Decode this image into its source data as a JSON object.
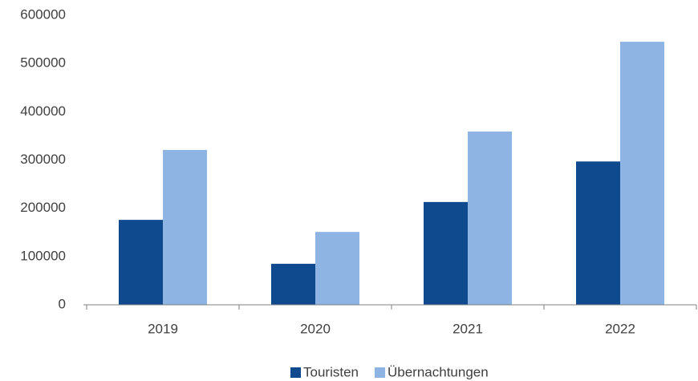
{
  "chart_data": {
    "type": "bar",
    "categories": [
      "2019",
      "2020",
      "2021",
      "2022"
    ],
    "series": [
      {
        "name": "Touristen",
        "color": "#0f4a8f",
        "values": [
          176000,
          85000,
          213000,
          297000
        ]
      },
      {
        "name": "Übernachtungen",
        "color": "#8db4e2",
        "values": [
          321000,
          151000,
          359000,
          545000
        ]
      }
    ],
    "ylim": [
      0,
      600000
    ],
    "yticks": [
      0,
      100000,
      200000,
      300000,
      400000,
      500000,
      600000
    ],
    "grid": false,
    "legend": "bottom"
  }
}
